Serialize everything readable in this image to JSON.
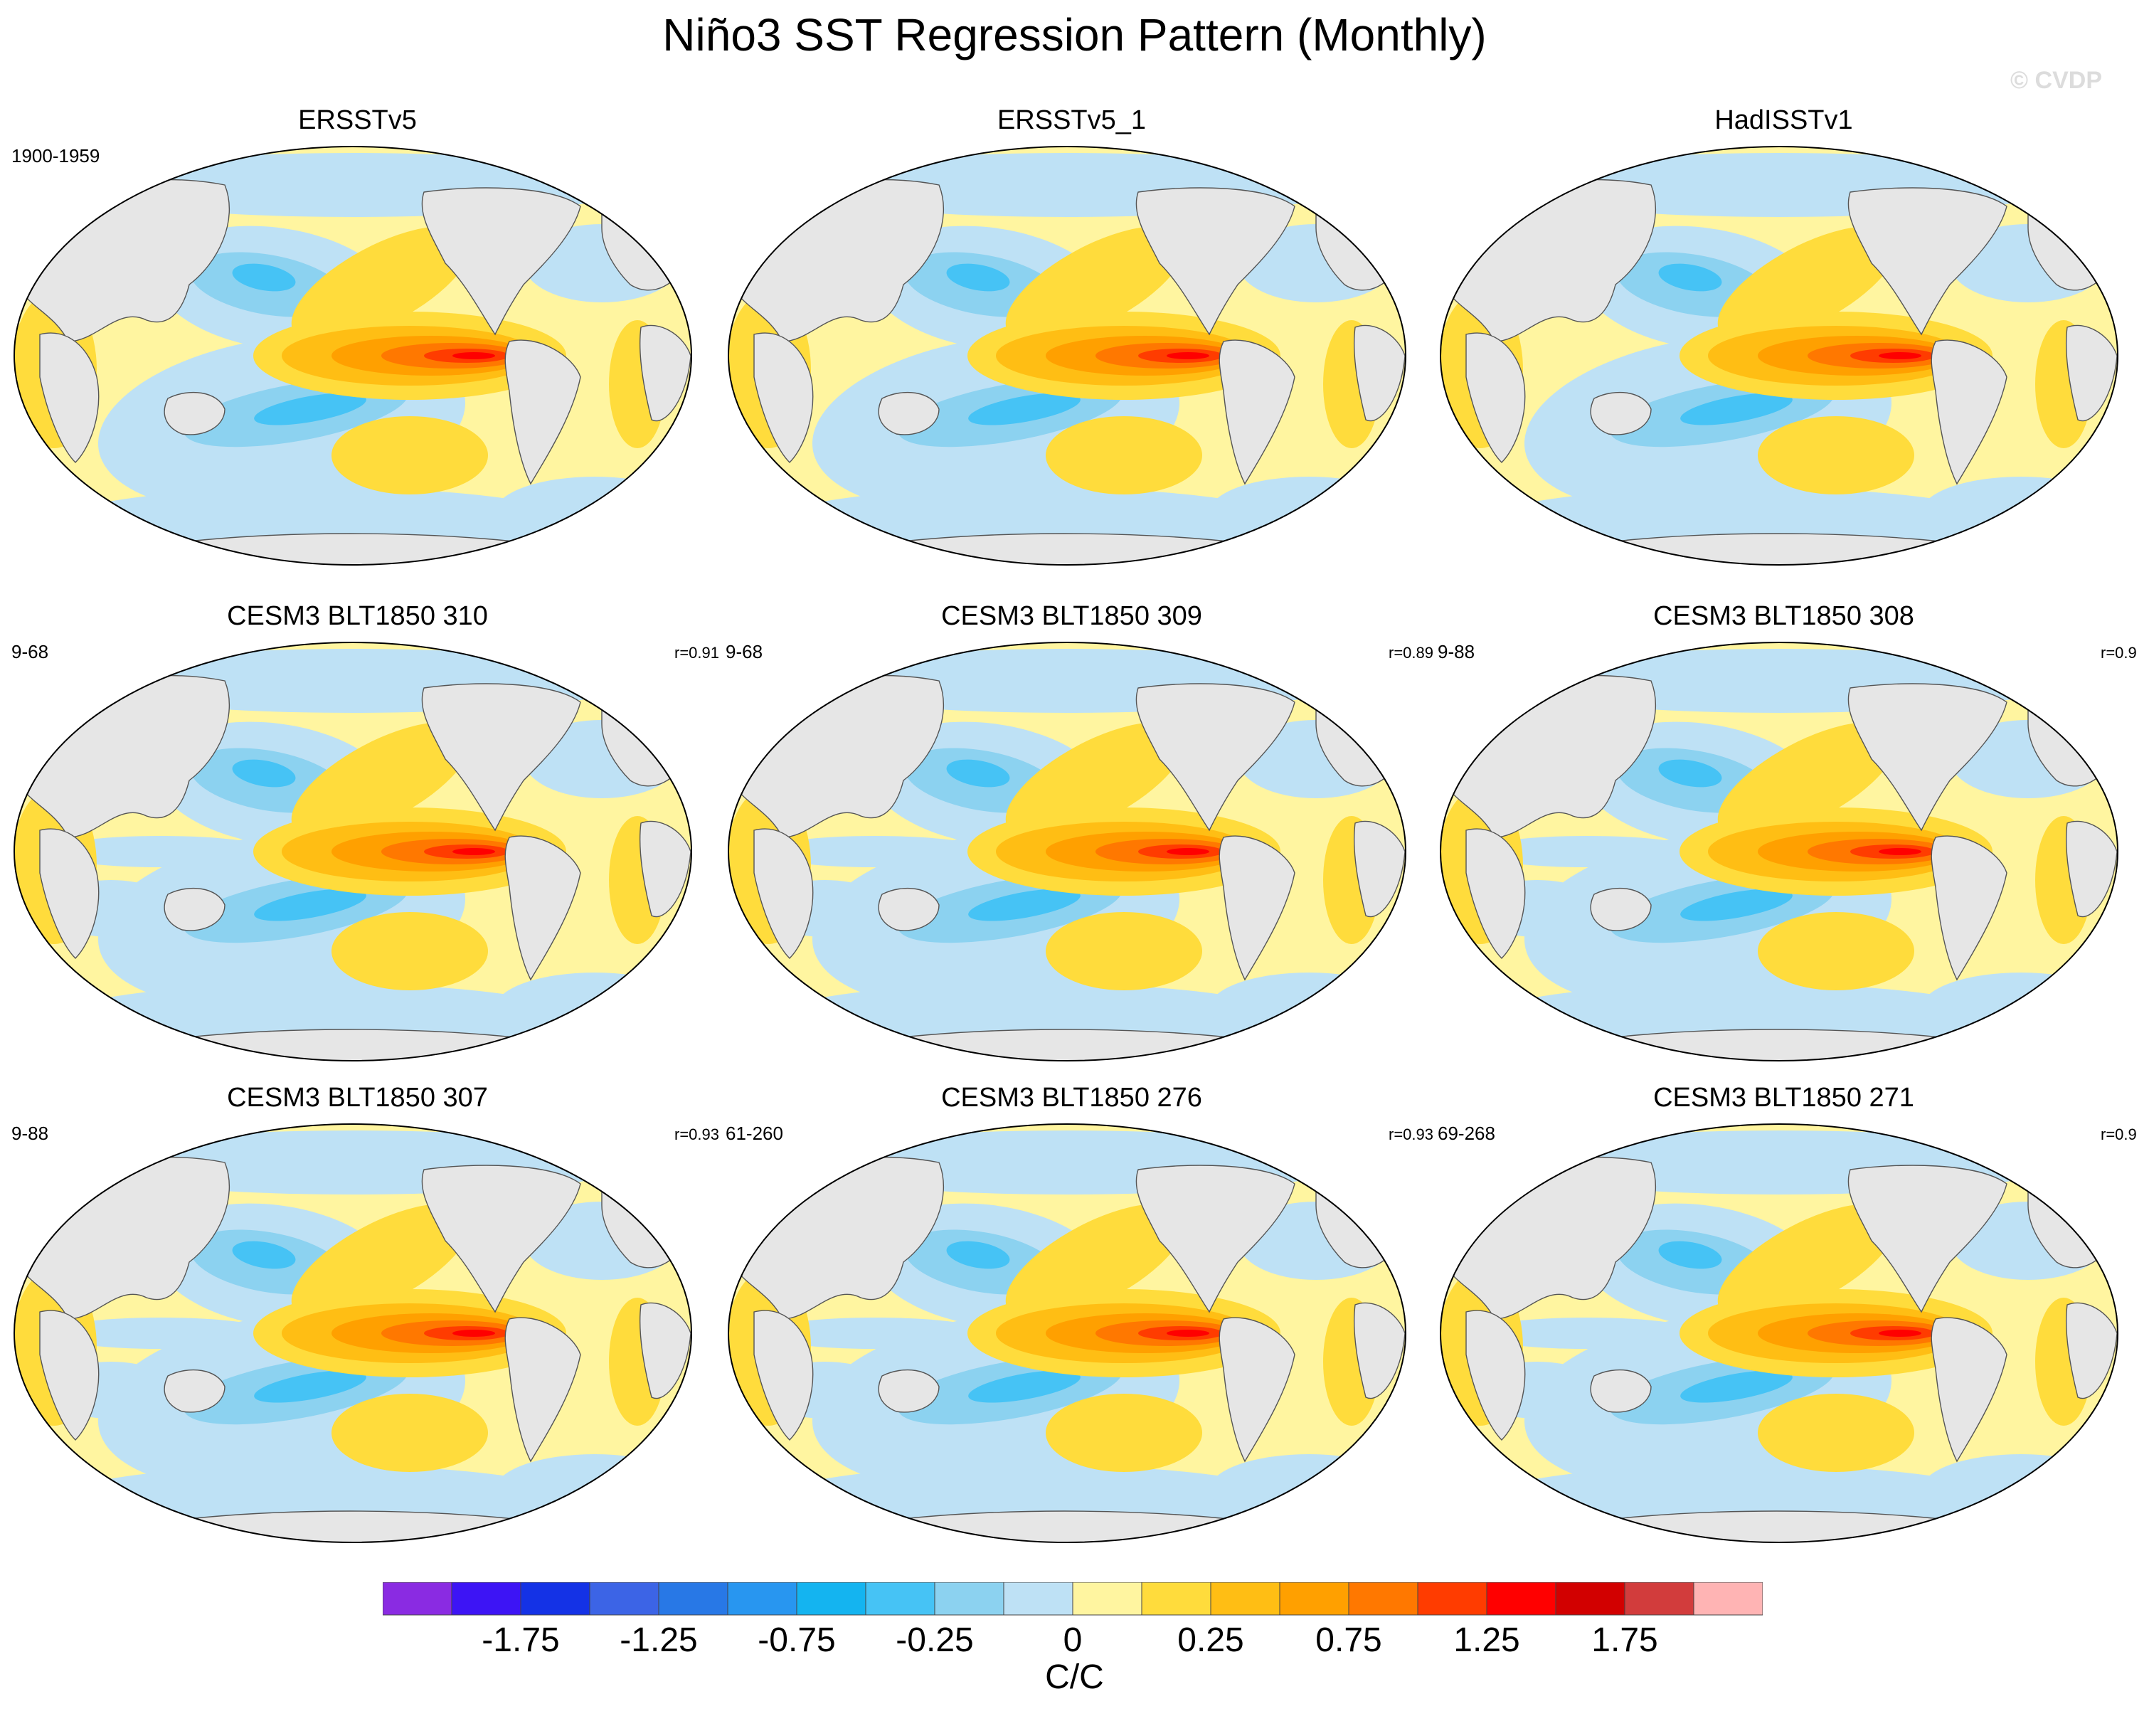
{
  "title": "Niño3 SST Regression Pattern (Monthly)",
  "watermark": "© CVDP",
  "panels": [
    {
      "title": "ERSSTv5",
      "period": "1900-1959",
      "corr": "",
      "row": 0,
      "col": 0,
      "pattern": "obs"
    },
    {
      "title": "ERSSTv5_1",
      "period": "",
      "corr": "",
      "row": 0,
      "col": 1,
      "pattern": "obs"
    },
    {
      "title": "HadISSTv1",
      "period": "",
      "corr": "",
      "row": 0,
      "col": 2,
      "pattern": "obs"
    },
    {
      "title": "CESM3 BLT1850 310",
      "period": "9-68",
      "corr": "r=0.91",
      "row": 1,
      "col": 0,
      "pattern": "model"
    },
    {
      "title": "CESM3 BLT1850 309",
      "period": "9-68",
      "corr": "r=0.89",
      "row": 1,
      "col": 1,
      "pattern": "model"
    },
    {
      "title": "CESM3 BLT1850 308",
      "period": "9-88",
      "corr": "r=0.9",
      "row": 1,
      "col": 2,
      "pattern": "model"
    },
    {
      "title": "CESM3 BLT1850 307",
      "period": "9-88",
      "corr": "r=0.93",
      "row": 2,
      "col": 0,
      "pattern": "model"
    },
    {
      "title": "CESM3 BLT1850 276",
      "period": "61-260",
      "corr": "r=0.93",
      "row": 2,
      "col": 1,
      "pattern": "model"
    },
    {
      "title": "CESM3 BLT1850 271",
      "period": "69-268",
      "corr": "r=0.9",
      "row": 2,
      "col": 2,
      "pattern": "model"
    }
  ],
  "colorbar": {
    "colors": [
      "#8a2be2",
      "#3d14f5",
      "#1432e6",
      "#3c64e6",
      "#2878e6",
      "#2896f0",
      "#14b4f0",
      "#46c3f5",
      "#8cd2f0",
      "#bee1f5",
      "#fff5a0",
      "#ffdc3c",
      "#ffbe14",
      "#ffa000",
      "#ff7800",
      "#ff3c00",
      "#ff0000",
      "#d20000",
      "#d23c3c",
      "#ffb4b4"
    ],
    "labels": [
      "-1.75",
      "-1.25",
      "-0.75",
      "-0.25",
      "0",
      "0.25",
      "0.75",
      "1.25",
      "1.75"
    ],
    "units": "C/C"
  },
  "map_colors": {
    "land": "#e6e6e6",
    "ocean_background": "#fff5a0"
  }
}
